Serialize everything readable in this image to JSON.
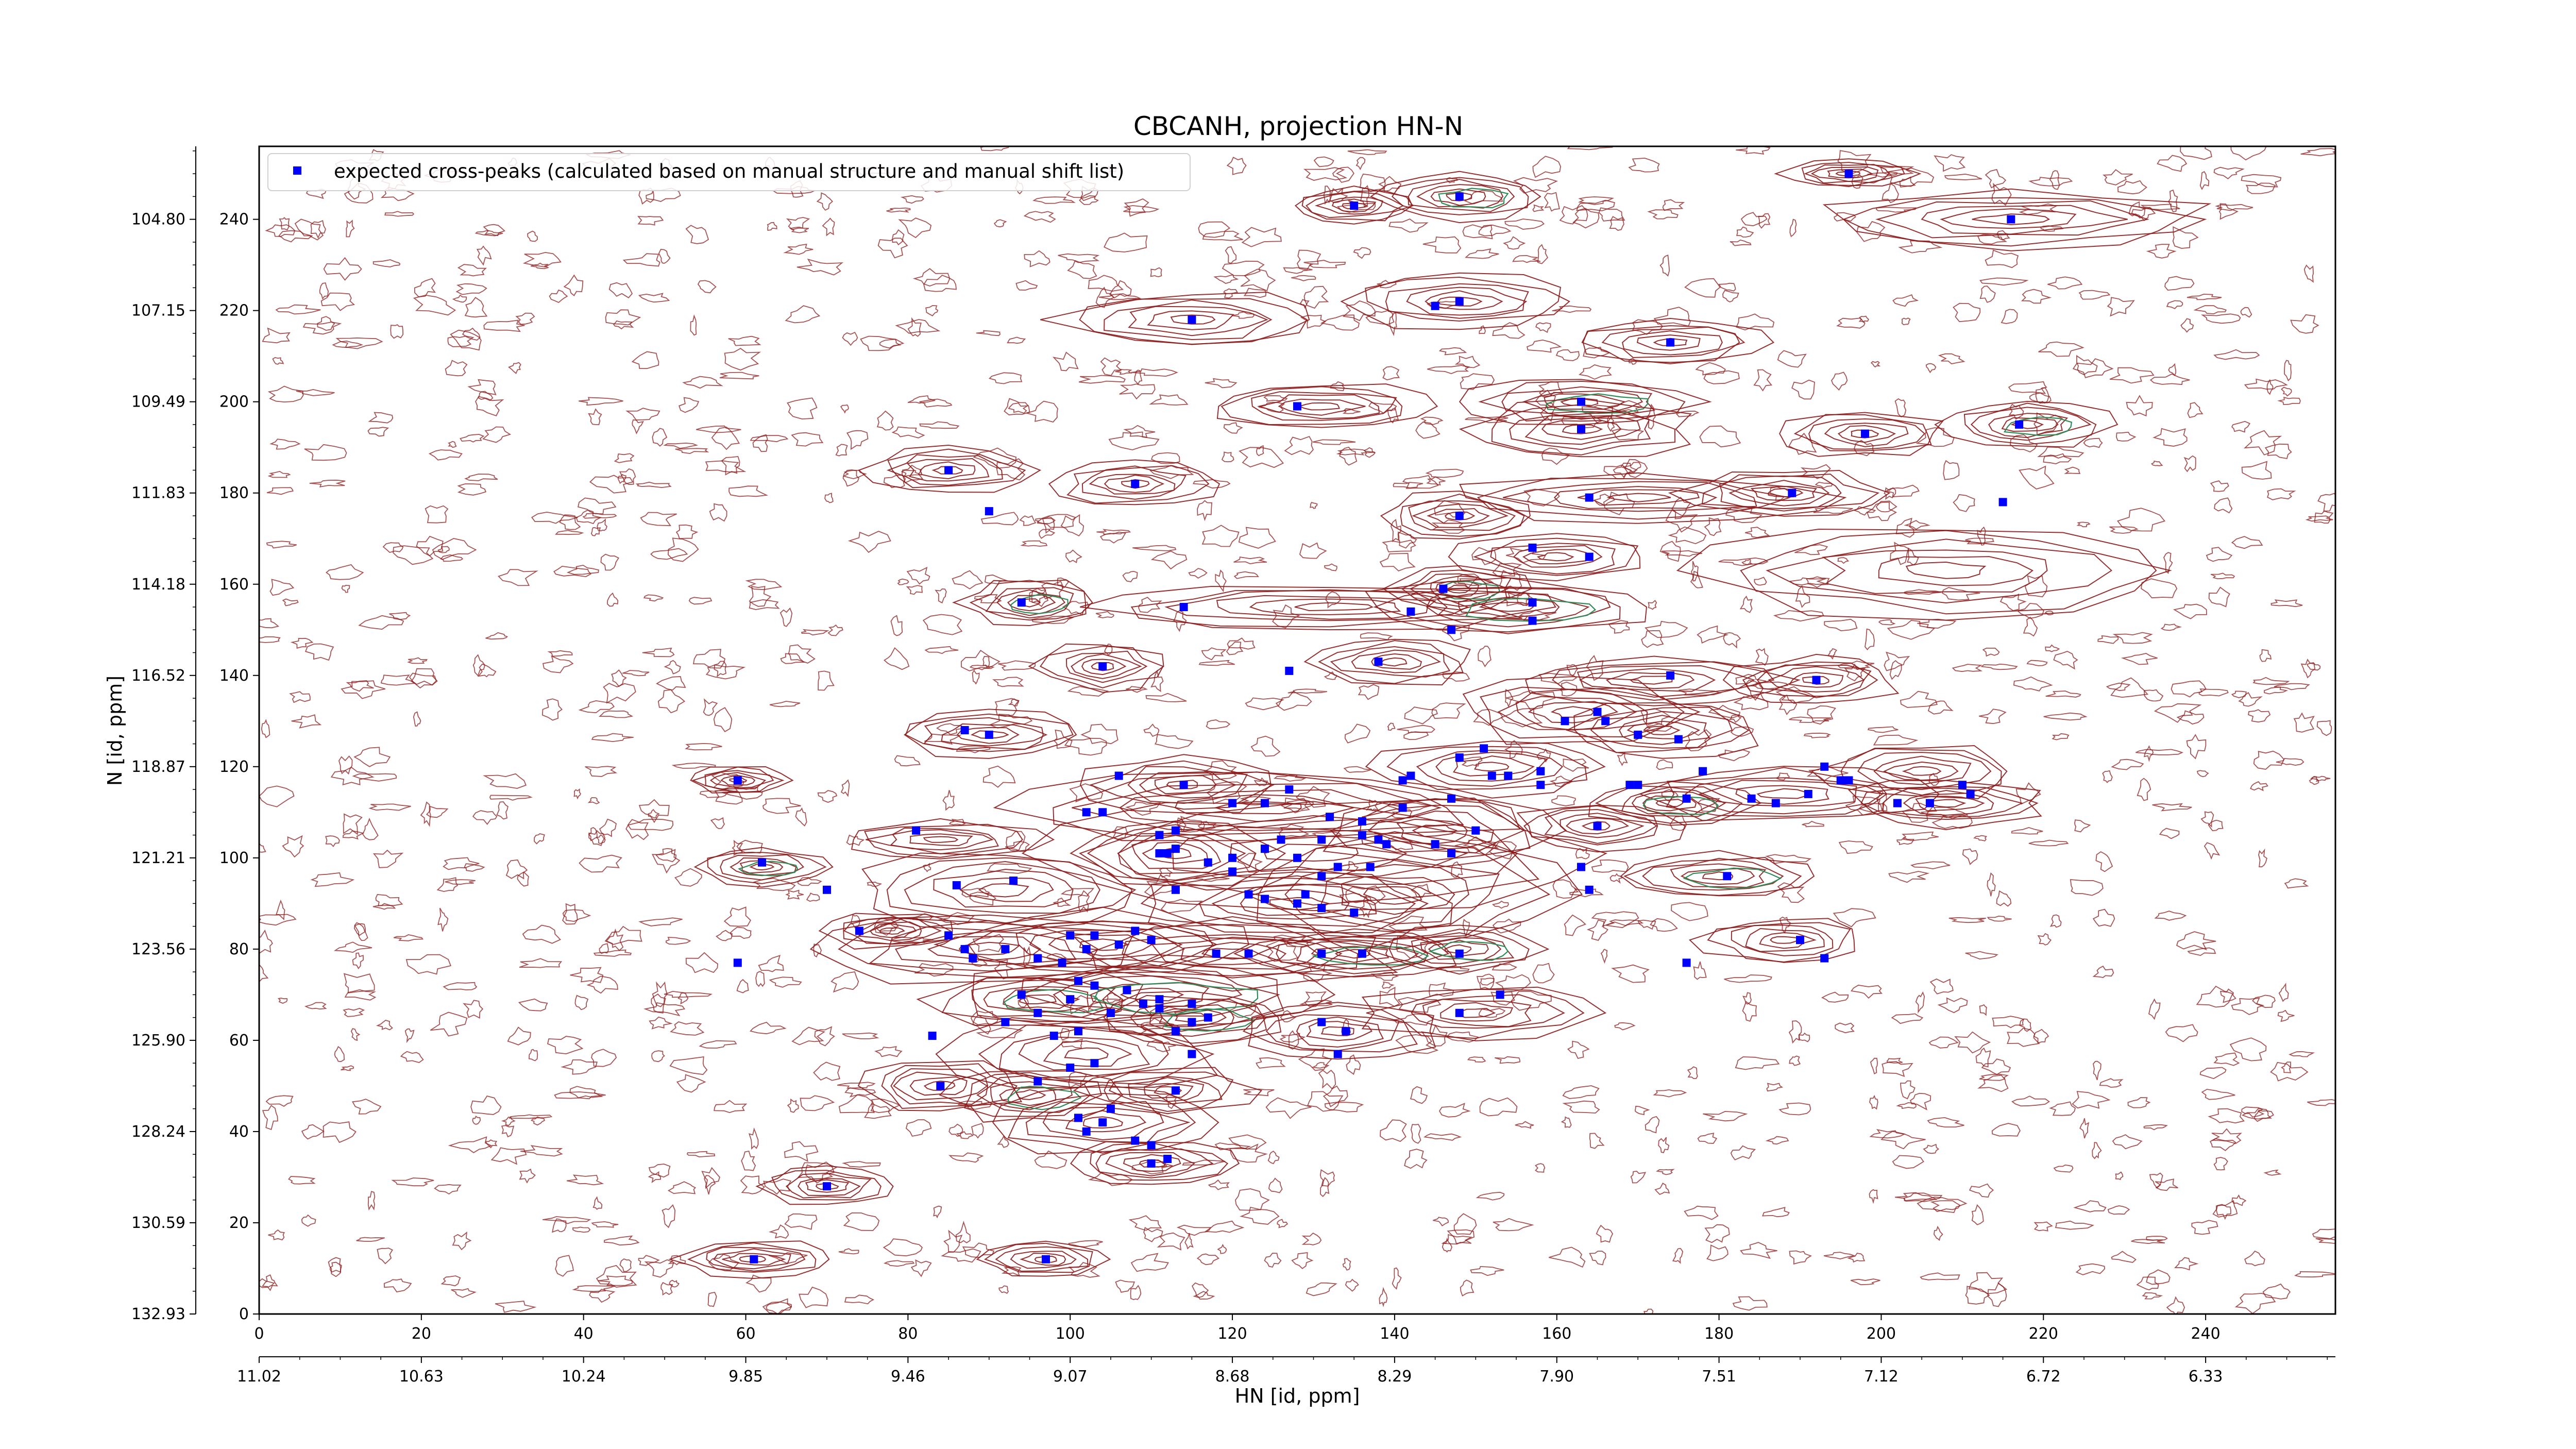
{
  "chart_data": {
    "type": "scatter",
    "title": "CBCANH, projection HN-N",
    "xlabel": "HN [id, ppm]",
    "ylabel": "N [id, ppm]",
    "xlim": [
      0,
      256
    ],
    "ylim": [
      0,
      256
    ],
    "x_ticks": [
      "0",
      "20",
      "40",
      "60",
      "80",
      "100",
      "120",
      "140",
      "160",
      "180",
      "200",
      "220",
      "240"
    ],
    "x_ppm_ticks": [
      "11.02",
      "10.63",
      "10.24",
      "9.85",
      "9.46",
      "9.07",
      "8.68",
      "8.29",
      "7.90",
      "7.51",
      "7.12",
      "6.72",
      "6.33"
    ],
    "y_ticks": [
      "0",
      "20",
      "40",
      "60",
      "80",
      "100",
      "120",
      "140",
      "160",
      "180",
      "200",
      "220",
      "240"
    ],
    "y_ppm_ticks": [
      "132.93",
      "130.59",
      "128.24",
      "125.90",
      "123.56",
      "121.21",
      "118.87",
      "116.52",
      "114.18",
      "111.83",
      "109.49",
      "107.15",
      "104.80"
    ],
    "legend_position": "top-left",
    "contour_colors": {
      "positive": "#8b1a1a",
      "negative": "#2e8b57"
    },
    "series": [
      {
        "name": "expected cross-peaks (calculated based on manual structure and manual shift list)",
        "color": "#0000ff",
        "points": [
          [
            196,
            250
          ],
          [
            148,
            245
          ],
          [
            135,
            243
          ],
          [
            216,
            240
          ],
          [
            148,
            222
          ],
          [
            145,
            221
          ],
          [
            115,
            218
          ],
          [
            174,
            213
          ],
          [
            128,
            199
          ],
          [
            163,
            200
          ],
          [
            163,
            194
          ],
          [
            198,
            193
          ],
          [
            217,
            195
          ],
          [
            85,
            185
          ],
          [
            108,
            182
          ],
          [
            164,
            179
          ],
          [
            189,
            180
          ],
          [
            215,
            178
          ],
          [
            90,
            176
          ],
          [
            148,
            175
          ],
          [
            164,
            166
          ],
          [
            157,
            168
          ],
          [
            146,
            159
          ],
          [
            157,
            156
          ],
          [
            114,
            155
          ],
          [
            142,
            154
          ],
          [
            157,
            152
          ],
          [
            94,
            156
          ],
          [
            147,
            150
          ],
          [
            138,
            143
          ],
          [
            104,
            142
          ],
          [
            127,
            141
          ],
          [
            174,
            140
          ],
          [
            192,
            139
          ],
          [
            165,
            132
          ],
          [
            161,
            130
          ],
          [
            166,
            130
          ],
          [
            170,
            127
          ],
          [
            87,
            128
          ],
          [
            90,
            127
          ],
          [
            151,
            124
          ],
          [
            148,
            122
          ],
          [
            175,
            126
          ],
          [
            193,
            120
          ],
          [
            178,
            119
          ],
          [
            170,
            116
          ],
          [
            169,
            116
          ],
          [
            158,
            119
          ],
          [
            152,
            118
          ],
          [
            154,
            118
          ],
          [
            142,
            118
          ],
          [
            141,
            117
          ],
          [
            114,
            116
          ],
          [
            106,
            118
          ],
          [
            59,
            117
          ],
          [
            158,
            116
          ],
          [
            195,
            117
          ],
          [
            210,
            116
          ],
          [
            196,
            117
          ],
          [
            211,
            114
          ],
          [
            206,
            112
          ],
          [
            127,
            115
          ],
          [
            120,
            112
          ],
          [
            124,
            112
          ],
          [
            132,
            109
          ],
          [
            141,
            111
          ],
          [
            147,
            113
          ],
          [
            136,
            108
          ],
          [
            102,
            110
          ],
          [
            111,
            105
          ],
          [
            113,
            106
          ],
          [
            104,
            110
          ],
          [
            81,
            106
          ],
          [
            165,
            107
          ],
          [
            176,
            113
          ],
          [
            187,
            112
          ],
          [
            184,
            113
          ],
          [
            191,
            114
          ],
          [
            202,
            112
          ],
          [
            112,
            101
          ],
          [
            124,
            102
          ],
          [
            120,
            100
          ],
          [
            113,
            102
          ],
          [
            126,
            104
          ],
          [
            131,
            104
          ],
          [
            136,
            105
          ],
          [
            139,
            103
          ],
          [
            145,
            103
          ],
          [
            138,
            104
          ],
          [
            150,
            106
          ],
          [
            147,
            101
          ],
          [
            111,
            101
          ],
          [
            117,
            99
          ],
          [
            133,
            98
          ],
          [
            137,
            98
          ],
          [
            128,
            100
          ],
          [
            120,
            97
          ],
          [
            131,
            96
          ],
          [
            62,
            99
          ],
          [
            163,
            98
          ],
          [
            164,
            93
          ],
          [
            181,
            96
          ],
          [
            70,
            93
          ],
          [
            86,
            94
          ],
          [
            93,
            95
          ],
          [
            113,
            93
          ],
          [
            122,
            92
          ],
          [
            124,
            91
          ],
          [
            128,
            90
          ],
          [
            129,
            92
          ],
          [
            135,
            88
          ],
          [
            131,
            89
          ],
          [
            74,
            84
          ],
          [
            85,
            83
          ],
          [
            100,
            83
          ],
          [
            103,
            83
          ],
          [
            108,
            84
          ],
          [
            110,
            82
          ],
          [
            87,
            80
          ],
          [
            92,
            80
          ],
          [
            102,
            80
          ],
          [
            106,
            81
          ],
          [
            88,
            78
          ],
          [
            96,
            78
          ],
          [
            99,
            77
          ],
          [
            122,
            79
          ],
          [
            118,
            79
          ],
          [
            131,
            79
          ],
          [
            136,
            79
          ],
          [
            148,
            79
          ],
          [
            176,
            77
          ],
          [
            59,
            77
          ],
          [
            190,
            82
          ],
          [
            193,
            78
          ],
          [
            94,
            70
          ],
          [
            101,
            73
          ],
          [
            107,
            71
          ],
          [
            100,
            69
          ],
          [
            103,
            72
          ],
          [
            105,
            66
          ],
          [
            109,
            68
          ],
          [
            111,
            67
          ],
          [
            115,
            68
          ],
          [
            115,
            64
          ],
          [
            117,
            65
          ],
          [
            134,
            62
          ],
          [
            131,
            64
          ],
          [
            148,
            66
          ],
          [
            153,
            70
          ],
          [
            83,
            61
          ],
          [
            92,
            64
          ],
          [
            96,
            66
          ],
          [
            98,
            61
          ],
          [
            101,
            62
          ],
          [
            111,
            69
          ],
          [
            113,
            62
          ],
          [
            115,
            57
          ],
          [
            133,
            57
          ],
          [
            100,
            54
          ],
          [
            103,
            55
          ],
          [
            84,
            50
          ],
          [
            96,
            51
          ],
          [
            113,
            49
          ],
          [
            101,
            43
          ],
          [
            105,
            45
          ],
          [
            102,
            40
          ],
          [
            104,
            42
          ],
          [
            108,
            38
          ],
          [
            110,
            37
          ],
          [
            112,
            34
          ],
          [
            110,
            33
          ],
          [
            70,
            28
          ],
          [
            61,
            12
          ],
          [
            97,
            12
          ]
        ]
      }
    ],
    "contour_clusters": [
      [
        196,
        250,
        8,
        3
      ],
      [
        148,
        245,
        10,
        5
      ],
      [
        135,
        243,
        8,
        4
      ],
      [
        216,
        240,
        25,
        6
      ],
      [
        148,
        222,
        14,
        6
      ],
      [
        115,
        218,
        16,
        6
      ],
      [
        174,
        213,
        12,
        5
      ],
      [
        131,
        199,
        14,
        5
      ],
      [
        163,
        200,
        14,
        5
      ],
      [
        163,
        194,
        14,
        6
      ],
      [
        198,
        193,
        10,
        5
      ],
      [
        218,
        195,
        10,
        5
      ],
      [
        85,
        185,
        10,
        5
      ],
      [
        108,
        182,
        10,
        5
      ],
      [
        170,
        179,
        22,
        5
      ],
      [
        188,
        180,
        12,
        5
      ],
      [
        148,
        175,
        10,
        5
      ],
      [
        160,
        166,
        12,
        5
      ],
      [
        148,
        159,
        8,
        5
      ],
      [
        132,
        155,
        28,
        5
      ],
      [
        154,
        155,
        18,
        6
      ],
      [
        95,
        156,
        8,
        5
      ],
      [
        208,
        163,
        30,
        10
      ],
      [
        140,
        143,
        10,
        5
      ],
      [
        104,
        142,
        8,
        5
      ],
      [
        172,
        139,
        16,
        5
      ],
      [
        192,
        139,
        10,
        5
      ],
      [
        162,
        132,
        14,
        7
      ],
      [
        173,
        128,
        12,
        6
      ],
      [
        90,
        127,
        12,
        5
      ],
      [
        152,
        120,
        14,
        6
      ],
      [
        114,
        116,
        12,
        6
      ],
      [
        59,
        117,
        6,
        3
      ],
      [
        205,
        119,
        12,
        6
      ],
      [
        208,
        112,
        12,
        5
      ],
      [
        188,
        114,
        18,
        6
      ],
      [
        174,
        112,
        10,
        5
      ],
      [
        165,
        107,
        10,
        5
      ],
      [
        84,
        104,
        12,
        4
      ],
      [
        123,
        111,
        32,
        8
      ],
      [
        130,
        101,
        34,
        12
      ],
      [
        145,
        106,
        14,
        8
      ],
      [
        113,
        101,
        12,
        7
      ],
      [
        140,
        92,
        20,
        12
      ],
      [
        128,
        90,
        20,
        8
      ],
      [
        62,
        98,
        8,
        4
      ],
      [
        180,
        96,
        12,
        5
      ],
      [
        92,
        93,
        18,
        8
      ],
      [
        78,
        84,
        8,
        4
      ],
      [
        90,
        80,
        22,
        8
      ],
      [
        104,
        81,
        18,
        7
      ],
      [
        120,
        79,
        20,
        7
      ],
      [
        135,
        79,
        14,
        5
      ],
      [
        148,
        80,
        10,
        5
      ],
      [
        188,
        82,
        10,
        5
      ],
      [
        96,
        69,
        14,
        6
      ],
      [
        110,
        70,
        22,
        8
      ],
      [
        115,
        65,
        12,
        6
      ],
      [
        133,
        62,
        12,
        6
      ],
      [
        150,
        66,
        14,
        6
      ],
      [
        102,
        57,
        16,
        8
      ],
      [
        84,
        50,
        10,
        6
      ],
      [
        95,
        48,
        10,
        6
      ],
      [
        112,
        49,
        10,
        5
      ],
      [
        104,
        42,
        14,
        7
      ],
      [
        110,
        33,
        10,
        5
      ],
      [
        70,
        28,
        8,
        4
      ],
      [
        61,
        12,
        10,
        4
      ],
      [
        97,
        12,
        8,
        4
      ]
    ]
  }
}
